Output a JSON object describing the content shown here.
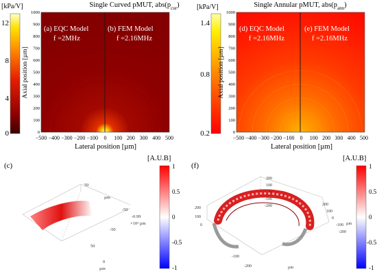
{
  "panel_left": {
    "title": "Single Curved pMUT, abs(p",
    "title_sub": "cur",
    "title_end": ")",
    "colorbar_unit": "[kPa/V]",
    "colorbar_ticks": [
      "12",
      "8",
      "4",
      "0"
    ],
    "label_a": "(a) EQC Model",
    "freq_a": "f =2MHz",
    "label_b": "(b) FEM Model",
    "freq_b": "f =2.16MHz"
  },
  "panel_right": {
    "title": "Single Annular pMUT, abs(p",
    "title_sub": "ann",
    "title_end": ")",
    "colorbar_unit": "[kPa/V]",
    "colorbar_ticks": [
      "1.4",
      "0.8",
      "0.2"
    ],
    "label_d": "(d) EQC Model",
    "freq_d": "f =2.16MHz",
    "label_e": "(e) FEM Model",
    "freq_e": "f =2.16MHz"
  },
  "axes": {
    "ylabel": "Axial position [µm]",
    "xlabel": "Lateral position [µm]",
    "yticks": [
      "1000",
      "900",
      "800",
      "700",
      "600",
      "500",
      "400",
      "300",
      "200",
      "100",
      "0"
    ],
    "xticks": [
      "−500",
      "−400",
      "−300",
      "−200",
      "−100",
      "0",
      "100",
      "200",
      "300",
      "400",
      "500"
    ]
  },
  "panel_c": {
    "label": "(c)",
    "unit": "[A.U.B]",
    "colorbar_ticks": [
      "1",
      "0.5",
      "0",
      "-0.5",
      "-1"
    ],
    "axis_labels": [
      "50",
      "-50",
      "-0.99",
      "×10³ µm",
      "-50",
      "50",
      "0",
      "µm",
      "µm"
    ]
  },
  "panel_f": {
    "label": "(f)",
    "unit": "[A.U.B]",
    "colorbar_ticks": [
      "1",
      "0.5",
      "0",
      "-0.5",
      "-1"
    ],
    "axis_labels": [
      "200",
      "100",
      "0",
      "-100",
      "-200",
      "200",
      "100",
      "0",
      "-100",
      "-200",
      "200",
      "100",
      "0",
      "-100",
      "-200",
      "µm",
      "µm"
    ]
  },
  "colors": {
    "red_dark": "#8b0000",
    "red": "#ff0000",
    "yellow": "#ffff00",
    "blue": "#0000ff"
  }
}
